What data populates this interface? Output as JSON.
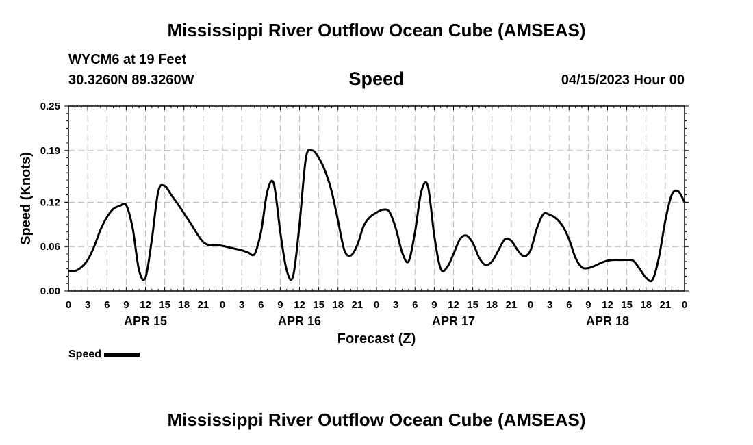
{
  "header": {
    "title": "Mississippi River Outflow Ocean Cube (AMSEAS)",
    "station": "WYCM6 at 19 Feet",
    "coords": "30.3260N  89.3260W",
    "metric": "Speed",
    "datetime": "04/15/2023 Hour 00"
  },
  "footer": {
    "title": "Mississippi River Outflow Ocean Cube (AMSEAS)"
  },
  "legend": {
    "label": "Speed",
    "color": "#000000"
  },
  "chart_data": {
    "type": "line",
    "title": "Speed",
    "xlabel": "Forecast (Z)",
    "ylabel": "Speed (Knots)",
    "xlim": [
      0,
      96
    ],
    "ylim": [
      0,
      0.25
    ],
    "grid": true,
    "yticks": [
      0.0,
      0.06,
      0.12,
      0.19,
      0.25
    ],
    "ytick_labels": [
      "0.00",
      "0.06",
      "0.12",
      "0.19",
      "0.25"
    ],
    "xtick_labels": [
      "0",
      "3",
      "6",
      "9",
      "12",
      "15",
      "18",
      "21",
      "0",
      "3",
      "6",
      "9",
      "12",
      "15",
      "18",
      "21",
      "0",
      "3",
      "6",
      "9",
      "12",
      "15",
      "18",
      "21",
      "0",
      "3",
      "6",
      "9",
      "12",
      "15",
      "18",
      "21",
      "0"
    ],
    "day_labels": [
      {
        "label": "APR 15",
        "hour": 12
      },
      {
        "label": "APR 16",
        "hour": 36
      },
      {
        "label": "APR 17",
        "hour": 60
      },
      {
        "label": "APR 18",
        "hour": 84
      }
    ],
    "series": [
      {
        "name": "Speed",
        "x": [
          0,
          1,
          2,
          3,
          4,
          5,
          6,
          7,
          8,
          9,
          10,
          11,
          12,
          13,
          14,
          15,
          16,
          17,
          18,
          19,
          20,
          21,
          22,
          23,
          24,
          25,
          26,
          27,
          28,
          29,
          30,
          31,
          32,
          33,
          34,
          35,
          36,
          37,
          38,
          39,
          40,
          41,
          42,
          43,
          44,
          45,
          46,
          47,
          48,
          49,
          50,
          51,
          52,
          53,
          54,
          55,
          56,
          57,
          58,
          59,
          60,
          61,
          62,
          63,
          64,
          65,
          66,
          67,
          68,
          69,
          70,
          71,
          72,
          73,
          74,
          75,
          76,
          77,
          78,
          79,
          80,
          81,
          82,
          83,
          84,
          85,
          86,
          87,
          88,
          89,
          90,
          91,
          92,
          93,
          94,
          95,
          96
        ],
        "values": [
          0.027,
          0.027,
          0.032,
          0.042,
          0.06,
          0.083,
          0.1,
          0.111,
          0.115,
          0.116,
          0.085,
          0.028,
          0.018,
          0.07,
          0.135,
          0.142,
          0.13,
          0.118,
          0.105,
          0.092,
          0.078,
          0.066,
          0.062,
          0.062,
          0.061,
          0.059,
          0.057,
          0.055,
          0.052,
          0.05,
          0.08,
          0.135,
          0.145,
          0.08,
          0.028,
          0.02,
          0.09,
          0.18,
          0.19,
          0.18,
          0.162,
          0.135,
          0.095,
          0.055,
          0.048,
          0.062,
          0.088,
          0.1,
          0.106,
          0.11,
          0.107,
          0.085,
          0.052,
          0.04,
          0.08,
          0.135,
          0.142,
          0.075,
          0.03,
          0.032,
          0.05,
          0.07,
          0.075,
          0.065,
          0.045,
          0.035,
          0.04,
          0.055,
          0.07,
          0.068,
          0.055,
          0.047,
          0.055,
          0.085,
          0.104,
          0.103,
          0.098,
          0.088,
          0.07,
          0.045,
          0.032,
          0.031,
          0.034,
          0.038,
          0.041,
          0.042,
          0.042,
          0.042,
          0.041,
          0.03,
          0.018,
          0.015,
          0.045,
          0.095,
          0.13,
          0.135,
          0.12
        ]
      }
    ]
  }
}
